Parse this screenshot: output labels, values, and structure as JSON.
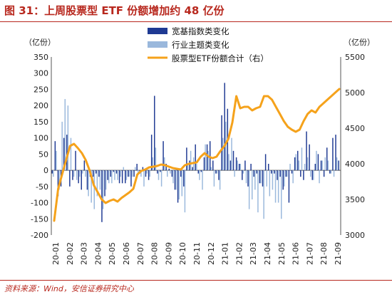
{
  "header": {
    "title": "图 31：上周股票型 ETF 份额增加约 48 亿份"
  },
  "footer": {
    "source": "资料来源：Wind，安信证券研究中心"
  },
  "chart_data": {
    "type": "bar+line",
    "left_unit": "（亿份）",
    "right_unit": "（亿份）",
    "left_ylim": [
      -200,
      350
    ],
    "left_ticks": [
      "350",
      "300",
      "250",
      "200",
      "150",
      "100",
      "50",
      "0",
      "-50",
      "-100",
      "-150",
      "-200"
    ],
    "right_ylim": [
      3000,
      5500
    ],
    "right_ticks": [
      "5500",
      "5000",
      "4500",
      "4000",
      "3500",
      "3000"
    ],
    "x_labels": [
      "20-01",
      "20-02",
      "20-03",
      "20-04",
      "20-05",
      "20-06",
      "20-07",
      "20-08",
      "20-09",
      "20-10",
      "20-11",
      "20-12",
      "21-01",
      "21-02",
      "21-03",
      "21-04",
      "21-05",
      "21-06",
      "21-07",
      "21-08",
      "21-09"
    ],
    "legend": [
      "宽基指数类变化",
      "行业主题类变化",
      "股票型ETF份额合计（右）"
    ],
    "colors": {
      "broad": "#1f3a93",
      "industry": "#9ab8dc",
      "total": "#f5a21b"
    },
    "broad_values": [
      -10,
      90,
      -80,
      -50,
      100,
      110,
      -50,
      -30,
      60,
      -40,
      -60,
      30,
      -60,
      -20,
      -20,
      -10,
      -20,
      -160,
      -80,
      -30,
      -20,
      -5,
      -10,
      -40,
      -40,
      -40,
      -20,
      -50,
      -20,
      20,
      -10,
      10,
      -20,
      -30,
      110,
      230,
      -10,
      -5,
      90,
      20,
      5,
      -20,
      -60,
      -100,
      -20,
      -50,
      70,
      30,
      10,
      80,
      -10,
      -5,
      40,
      80,
      90,
      30,
      -10,
      -30,
      170,
      270,
      190,
      30,
      60,
      40,
      20,
      -30,
      30,
      -50,
      20,
      -20,
      -10,
      -40,
      -50,
      50,
      20,
      -10,
      -10,
      -30,
      -20,
      -60,
      -20,
      -100,
      -10,
      40,
      60,
      -20,
      -30,
      120,
      80,
      -30,
      20,
      50,
      30,
      -20,
      70,
      -10,
      100,
      110,
      30
    ],
    "industry_values": [
      -20,
      60,
      -60,
      150,
      220,
      200,
      100,
      -20,
      -30,
      -20,
      -10,
      -20,
      -80,
      -100,
      -120,
      -80,
      -60,
      -120,
      -60,
      -40,
      -40,
      -30,
      -30,
      -20,
      10,
      -30,
      -20,
      -20,
      10,
      -10,
      -20,
      -50,
      -10,
      -20,
      40,
      70,
      -30,
      -50,
      40,
      -20,
      -10,
      -40,
      -60,
      -90,
      -80,
      -130,
      20,
      60,
      40,
      20,
      -30,
      -60,
      80,
      60,
      10,
      -50,
      -10,
      -60,
      100,
      150,
      50,
      100,
      -20,
      30,
      20,
      -10,
      -40,
      -120,
      -90,
      -60,
      -130,
      -40,
      -150,
      -50,
      -80,
      -60,
      -100,
      -100,
      -150,
      -50,
      -20,
      20,
      -40,
      50,
      30,
      70,
      20,
      40,
      -20,
      -30,
      60,
      -40,
      30,
      40,
      30,
      -10,
      -20,
      40
    ],
    "total_values": [
      3200,
      3650,
      3850,
      4050,
      4250,
      4280,
      4220,
      4150,
      4050,
      3900,
      3700,
      3600,
      3500,
      3450,
      3480,
      3500,
      3470,
      3520,
      3560,
      3600,
      3650,
      3850,
      3900,
      3920,
      3950,
      3960,
      3970,
      3990,
      3980,
      3960,
      3940,
      3930,
      3920,
      3980,
      4000,
      4010,
      4020,
      4100,
      4150,
      4100,
      4080,
      4100,
      4180,
      4250,
      4350,
      4580,
      4950,
      4780,
      4800,
      4800,
      4750,
      4780,
      4800,
      4950,
      4950,
      4900,
      4800,
      4700,
      4600,
      4520,
      4480,
      4450,
      4480,
      4600,
      4700,
      4750,
      4720,
      4800,
      4850,
      4900,
      4950,
      5000,
      5050
    ]
  }
}
